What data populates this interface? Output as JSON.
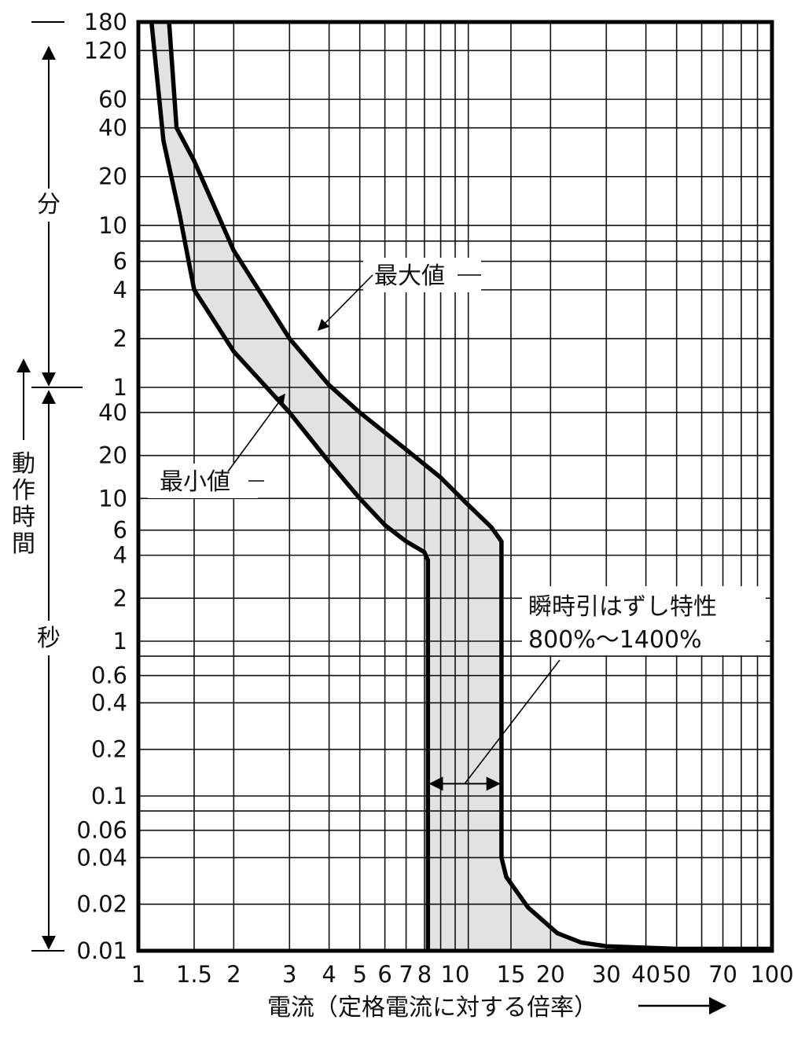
{
  "chart_data": {
    "type": "area",
    "x_scale": "log",
    "y_scale": "log",
    "xlim": [
      1,
      100
    ],
    "x_ticks": [
      "1",
      "1.5",
      "2",
      "3",
      "4",
      "5",
      "6",
      "7",
      "8",
      "10",
      "15",
      "20",
      "30",
      "40",
      "50",
      "70",
      "100"
    ],
    "x_tick_values": [
      1,
      1.5,
      2,
      3,
      4,
      5,
      6,
      7,
      8,
      10,
      15,
      20,
      30,
      40,
      50,
      70,
      100
    ],
    "xlabel": "電流（定格電流に対する倍率）",
    "ylabel": "動作時間",
    "y_unit_minutes": "分",
    "y_unit_seconds": "秒",
    "y_ticks_minutes": [
      "180",
      "120",
      "60",
      "40",
      "20",
      "10",
      "6",
      "4",
      "2",
      "1"
    ],
    "y_tick_minute_values": [
      180,
      120,
      60,
      40,
      20,
      10,
      6,
      4,
      2,
      1
    ],
    "y_ticks_seconds": [
      "40",
      "20",
      "10",
      "6",
      "4",
      "2",
      "1",
      "0.6",
      "0.4",
      "0.2",
      "0.1",
      "0.06",
      "0.04",
      "0.02",
      "0.01"
    ],
    "y_tick_second_values": [
      40,
      20,
      10,
      6,
      4,
      2,
      1,
      0.6,
      0.4,
      0.2,
      0.1,
      0.06,
      0.04,
      0.02,
      0.01
    ],
    "grid": true,
    "series": [
      {
        "name": "最大値",
        "points_current_seconds": [
          [
            1.25,
            11000
          ],
          [
            1.32,
            2400
          ],
          [
            1.5,
            1500
          ],
          [
            2,
            420
          ],
          [
            3,
            120
          ],
          [
            4,
            62
          ],
          [
            5,
            40
          ],
          [
            7,
            22
          ],
          [
            9,
            14
          ],
          [
            11,
            9
          ],
          [
            13,
            6.3
          ],
          [
            14,
            5
          ],
          [
            14,
            0.04
          ],
          [
            14.5,
            0.03
          ],
          [
            17,
            0.019
          ],
          [
            21,
            0.013
          ],
          [
            25,
            0.0113
          ],
          [
            30,
            0.0107
          ],
          [
            50,
            0.0103
          ],
          [
            100,
            0.0103
          ]
        ]
      },
      {
        "name": "最小値",
        "points_current_seconds": [
          [
            1.1,
            11000
          ],
          [
            1.2,
            2000
          ],
          [
            1.35,
            700
          ],
          [
            1.5,
            240
          ],
          [
            2,
            100
          ],
          [
            3,
            40
          ],
          [
            4,
            18
          ],
          [
            5,
            10
          ],
          [
            6,
            6.5
          ],
          [
            7,
            5
          ],
          [
            8,
            4.2
          ],
          [
            8.2,
            3.7
          ],
          [
            8.2,
            0.01
          ]
        ]
      }
    ],
    "instantaneous_trip_label": "瞬時引はずし特性",
    "instantaneous_trip_range": "800%〜1400%",
    "instantaneous_trip_x": [
      8.2,
      14
    ],
    "instantaneous_trip_seconds": 0.12
  }
}
